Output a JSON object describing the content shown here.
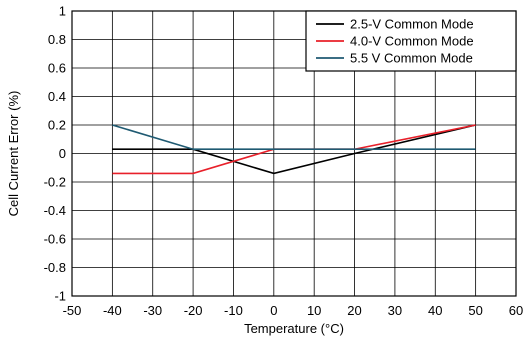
{
  "chart_data": {
    "type": "line",
    "title": "",
    "xlabel": "Temperature (°C)",
    "ylabel": "Cell Current Error (%)",
    "xlim": [
      -50,
      60
    ],
    "ylim": [
      -1,
      1
    ],
    "x_ticks": [
      -50,
      -40,
      -30,
      -20,
      -10,
      0,
      10,
      20,
      30,
      40,
      50,
      60
    ],
    "x_tick_labels": [
      "-50",
      "-40",
      "-30",
      "-20",
      "-10",
      "0",
      "10",
      "20",
      "30",
      "40",
      "50",
      "60"
    ],
    "y_ticks": [
      -1,
      -0.8,
      -0.6,
      -0.4,
      -0.2,
      0,
      0.2,
      0.4,
      0.6,
      0.8,
      1
    ],
    "y_tick_labels": [
      "-1",
      "-0.8",
      "-0.6",
      "-0.4",
      "-0.2",
      "0",
      "0.2",
      "0.4",
      "0.6",
      "0.8",
      "1"
    ],
    "grid": true,
    "legend_position": "top-right",
    "series": [
      {
        "name": "2.5-V Common Mode",
        "color": "#000000",
        "x": [
          -40,
          -20,
          0,
          20,
          50
        ],
        "y": [
          0.03,
          0.03,
          -0.14,
          0.0,
          0.2
        ]
      },
      {
        "name": "4.0-V Common Mode",
        "color": "#e8202a",
        "x": [
          -40,
          -20,
          0,
          20,
          50
        ],
        "y": [
          -0.14,
          -0.14,
          0.03,
          0.03,
          0.2
        ]
      },
      {
        "name": "5.5 V Common Mode",
        "color": "#1f5a72",
        "x": [
          -40,
          -20,
          0,
          20,
          50
        ],
        "y": [
          0.2,
          0.03,
          0.03,
          0.03,
          0.03
        ]
      }
    ]
  }
}
